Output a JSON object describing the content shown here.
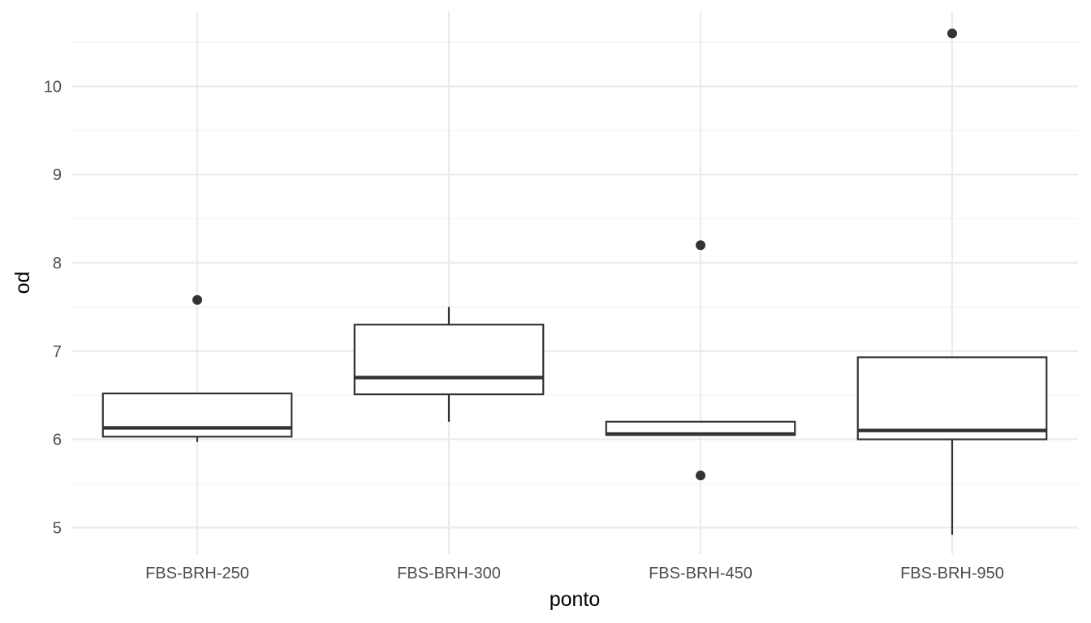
{
  "chart_data": {
    "type": "boxplot",
    "xlabel": "ponto",
    "ylabel": "od",
    "ylim": [
      4.7,
      10.85
    ],
    "y_ticks": [
      5,
      6,
      7,
      8,
      9,
      10
    ],
    "grid": true,
    "categories": [
      "FBS-BRH-250",
      "FBS-BRH-300",
      "FBS-BRH-450",
      "FBS-BRH-950"
    ],
    "boxes": [
      {
        "category": "FBS-BRH-250",
        "whisker_low": 5.97,
        "q1": 6.03,
        "median": 6.13,
        "q3": 6.52,
        "whisker_high": 6.52,
        "outliers": [
          7.58
        ]
      },
      {
        "category": "FBS-BRH-300",
        "whisker_low": 6.2,
        "q1": 6.51,
        "median": 6.7,
        "q3": 7.3,
        "whisker_high": 7.5,
        "outliers": []
      },
      {
        "category": "FBS-BRH-450",
        "whisker_low": 6.05,
        "q1": 6.05,
        "median": 6.06,
        "q3": 6.2,
        "whisker_high": 6.2,
        "outliers": [
          8.2,
          5.59
        ]
      },
      {
        "category": "FBS-BRH-950",
        "whisker_low": 4.92,
        "q1": 6.0,
        "median": 6.1,
        "q3": 6.93,
        "whisker_high": 6.93,
        "outliers": [
          10.6
        ]
      }
    ],
    "colors": {
      "box_stroke": "#333333",
      "grid": "#ebebeb",
      "tick_text": "#4d4d4d"
    }
  }
}
